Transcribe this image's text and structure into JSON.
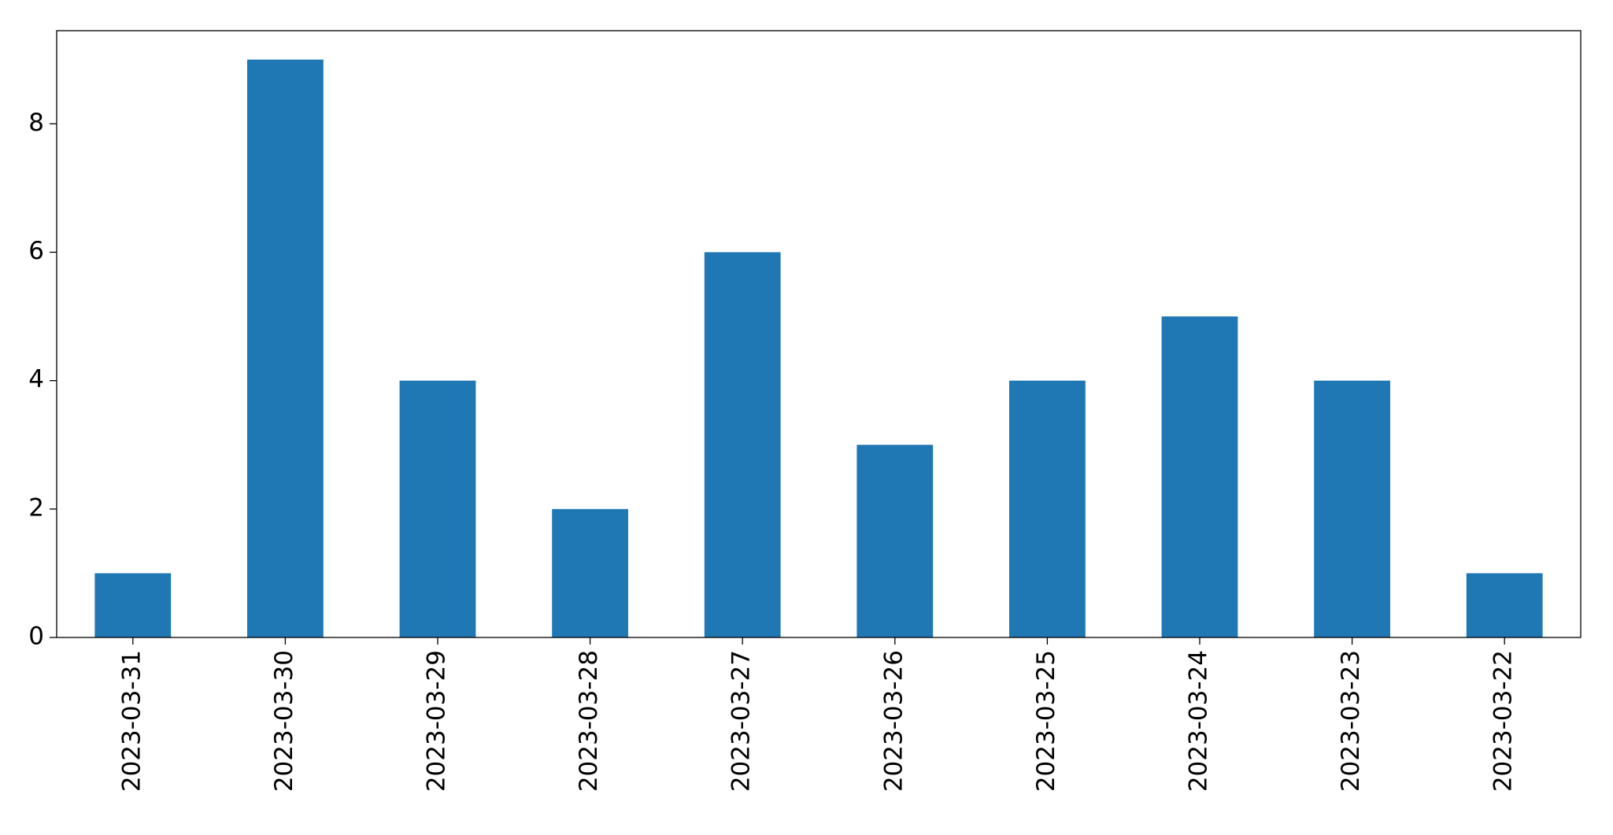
{
  "chart_data": {
    "type": "bar",
    "categories": [
      "2023-03-31",
      "2023-03-30",
      "2023-03-29",
      "2023-03-28",
      "2023-03-27",
      "2023-03-26",
      "2023-03-25",
      "2023-03-24",
      "2023-03-23",
      "2023-03-22"
    ],
    "values": [
      1,
      9,
      4,
      2,
      6,
      3,
      4,
      5,
      4,
      1
    ],
    "color": "#1f77b4",
    "ylim": [
      0,
      9.45
    ],
    "yticks": [
      0,
      2,
      4,
      6,
      8
    ],
    "grid": false
  }
}
